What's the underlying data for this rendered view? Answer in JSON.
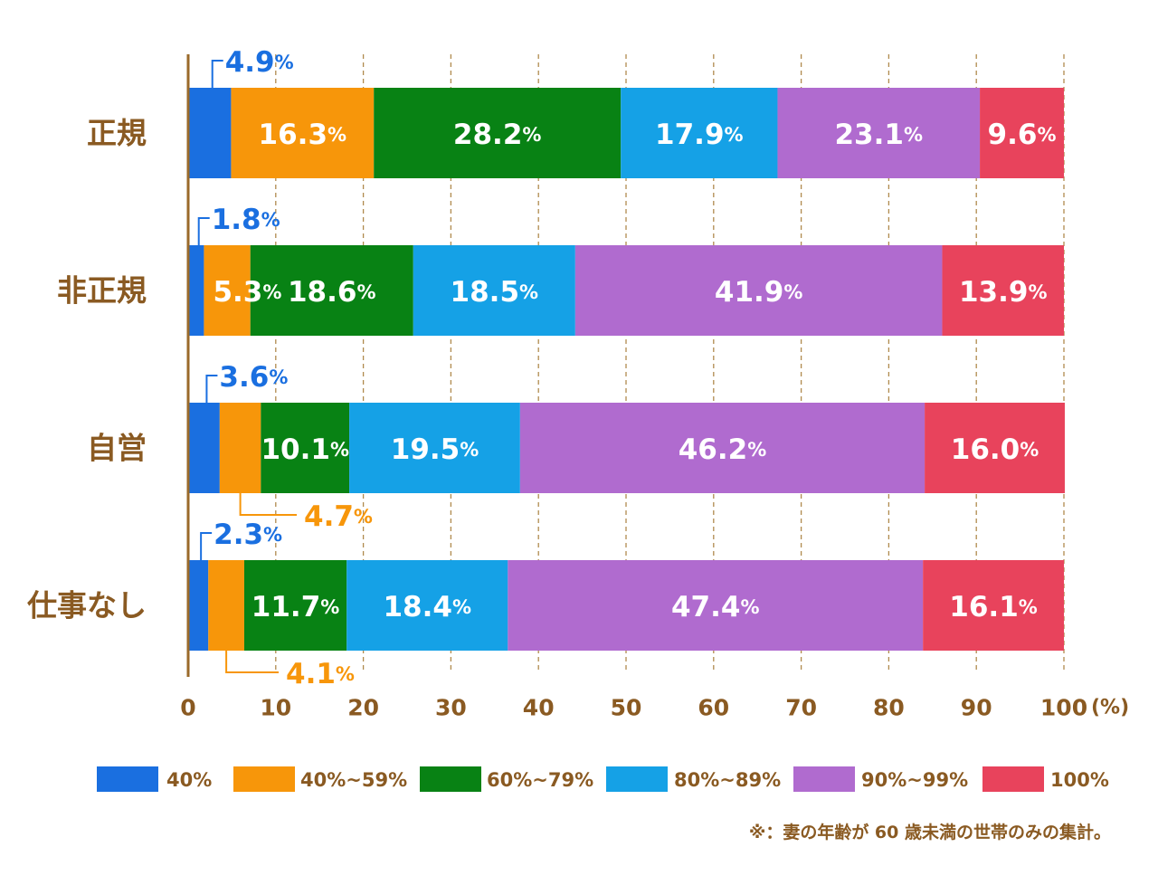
{
  "chart_data": {
    "type": "bar",
    "orientation": "horizontal",
    "stacked": true,
    "categories": [
      "正規",
      "非正規",
      "自営",
      "仕事なし"
    ],
    "series": [
      {
        "name": "40%",
        "values": [
          4.9,
          1.8,
          3.6,
          2.3
        ]
      },
      {
        "name": "40%~59%",
        "values": [
          16.3,
          5.3,
          4.7,
          4.1
        ]
      },
      {
        "name": "60%~79%",
        "values": [
          28.2,
          18.6,
          10.1,
          11.7
        ]
      },
      {
        "name": "80%~89%",
        "values": [
          17.9,
          18.5,
          19.5,
          18.4
        ]
      },
      {
        "name": "90%~99%",
        "values": [
          23.1,
          41.9,
          46.2,
          47.4
        ]
      },
      {
        "name": "100%",
        "values": [
          9.6,
          13.9,
          16.0,
          16.1
        ]
      }
    ],
    "value_labels": [
      [
        "4.9",
        "16.3",
        "28.2",
        "17.9",
        "23.1",
        "9.6"
      ],
      [
        "1.8",
        "5.3",
        "18.6",
        "18.5",
        "41.9",
        "13.9"
      ],
      [
        "3.6",
        "4.7",
        "10.1",
        "19.5",
        "46.2",
        "16.0"
      ],
      [
        "2.3",
        "4.1",
        "11.7",
        "18.4",
        "47.4",
        "16.1"
      ]
    ],
    "label_unit": "%",
    "xlim": [
      0,
      100
    ],
    "xticks": [
      "0",
      "10",
      "20",
      "30",
      "40",
      "50",
      "60",
      "70",
      "80",
      "90",
      "100"
    ],
    "x_unit": "(%)",
    "grid": "vertical dashed",
    "legend_position": "bottom",
    "colors": [
      "#1a6fe0",
      "#f7960a",
      "#088214",
      "#15a1e6",
      "#b06bcf",
      "#e8435c"
    ],
    "callout_colors": [
      "#1a6fe0",
      "#f7960a"
    ],
    "text_color": "#8a5a22",
    "axis_color": "#9a6a2a"
  },
  "footnote": "※：妻の年齢が 60 歳未満の世帯のみの集計。"
}
